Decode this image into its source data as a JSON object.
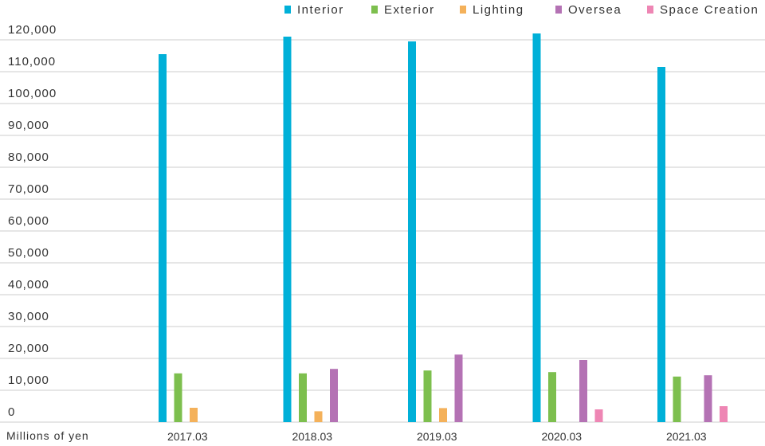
{
  "chart_data": {
    "type": "bar",
    "title": "",
    "xlabel": "",
    "ylabel": "Millions of yen",
    "ylim": [
      0,
      120000
    ],
    "yticks": [
      0,
      10000,
      20000,
      30000,
      40000,
      50000,
      60000,
      70000,
      80000,
      90000,
      100000,
      110000,
      120000
    ],
    "ytick_labels": [
      "0",
      "10,000",
      "20,000",
      "30,000",
      "40,000",
      "50,000",
      "60,000",
      "70,000",
      "80,000",
      "90,000",
      "100,000",
      "110,000",
      "120,000"
    ],
    "categories": [
      "2017.03",
      "2018.03",
      "2019.03",
      "2020.03",
      "2021.03"
    ],
    "grid": true,
    "legend_position": "top-right",
    "series": [
      {
        "name": "Interior",
        "color": "#00b0d8",
        "values": [
          115500,
          121000,
          119500,
          122000,
          111500
        ]
      },
      {
        "name": "Exterior",
        "color": "#7dbf4e",
        "values": [
          15300,
          15300,
          16200,
          15700,
          14300
        ]
      },
      {
        "name": "Lighting",
        "color": "#f4b15a",
        "values": [
          4500,
          3400,
          4400,
          null,
          null
        ]
      },
      {
        "name": "Oversea",
        "color": "#b472b4",
        "values": [
          null,
          16700,
          21200,
          19500,
          14700
        ]
      },
      {
        "name": "Space Creation",
        "color": "#ee86b4",
        "values": [
          null,
          null,
          null,
          4000,
          5000
        ]
      }
    ]
  }
}
